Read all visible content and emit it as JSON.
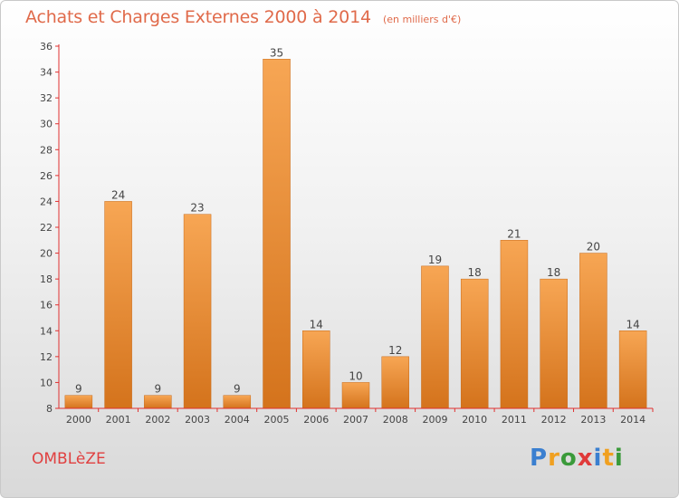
{
  "chart_data": {
    "type": "bar",
    "title": "Achats et Charges Externes 2000 à 2014",
    "subtitle": "(en milliers d'€)",
    "categories": [
      "2000",
      "2001",
      "2002",
      "2003",
      "2004",
      "2005",
      "2006",
      "2007",
      "2008",
      "2009",
      "2010",
      "2011",
      "2012",
      "2013",
      "2014"
    ],
    "values": [
      9,
      24,
      9,
      23,
      9,
      35,
      14,
      10,
      12,
      19,
      18,
      21,
      18,
      20,
      14
    ],
    "ylim": [
      8,
      36
    ],
    "yticks": [
      8,
      10,
      12,
      14,
      16,
      18,
      20,
      22,
      24,
      26,
      28,
      30,
      32,
      34,
      36
    ],
    "xlabel": "",
    "ylabel": "",
    "grid": false,
    "bar_color": "#f0922e",
    "axis_color": "#e03030"
  },
  "commune": "OMBLèZE",
  "brand": {
    "letters": [
      "P",
      "r",
      "o",
      "x",
      "i",
      "t",
      "i"
    ],
    "colors": [
      "#3a7fd0",
      "#f0a020",
      "#3a9a3a",
      "#e03a3a",
      "#3a7fd0",
      "#f0a020",
      "#3a9a3a"
    ]
  }
}
